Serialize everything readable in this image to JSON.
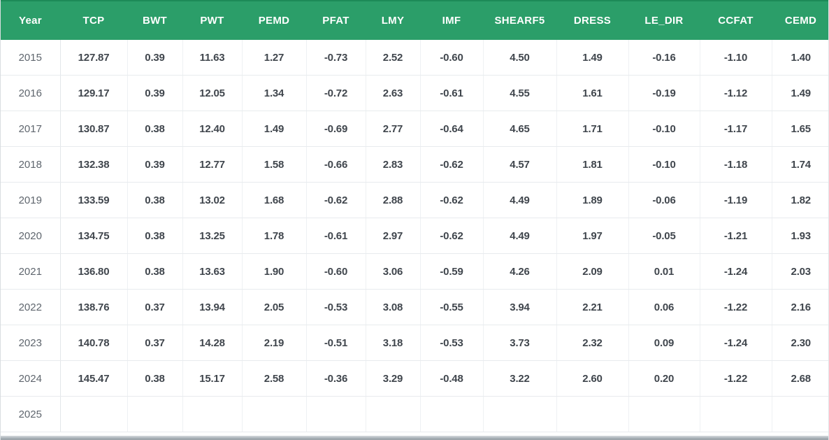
{
  "table": {
    "columns": [
      "Year",
      "TCP",
      "BWT",
      "PWT",
      "PEMD",
      "PFAT",
      "LMY",
      "IMF",
      "SHEARF5",
      "DRESS",
      "LE_DIR",
      "CCFAT",
      "CEMD"
    ],
    "rows": [
      [
        "2015",
        "127.87",
        "0.39",
        "11.63",
        "1.27",
        "-0.73",
        "2.52",
        "-0.60",
        "4.50",
        "1.49",
        "-0.16",
        "-1.10",
        "1.40"
      ],
      [
        "2016",
        "129.17",
        "0.39",
        "12.05",
        "1.34",
        "-0.72",
        "2.63",
        "-0.61",
        "4.55",
        "1.61",
        "-0.19",
        "-1.12",
        "1.49"
      ],
      [
        "2017",
        "130.87",
        "0.38",
        "12.40",
        "1.49",
        "-0.69",
        "2.77",
        "-0.64",
        "4.65",
        "1.71",
        "-0.10",
        "-1.17",
        "1.65"
      ],
      [
        "2018",
        "132.38",
        "0.39",
        "12.77",
        "1.58",
        "-0.66",
        "2.83",
        "-0.62",
        "4.57",
        "1.81",
        "-0.10",
        "-1.18",
        "1.74"
      ],
      [
        "2019",
        "133.59",
        "0.38",
        "13.02",
        "1.68",
        "-0.62",
        "2.88",
        "-0.62",
        "4.49",
        "1.89",
        "-0.06",
        "-1.19",
        "1.82"
      ],
      [
        "2020",
        "134.75",
        "0.38",
        "13.25",
        "1.78",
        "-0.61",
        "2.97",
        "-0.62",
        "4.49",
        "1.97",
        "-0.05",
        "-1.21",
        "1.93"
      ],
      [
        "2021",
        "136.80",
        "0.38",
        "13.63",
        "1.90",
        "-0.60",
        "3.06",
        "-0.59",
        "4.26",
        "2.09",
        "0.01",
        "-1.24",
        "2.03"
      ],
      [
        "2022",
        "138.76",
        "0.37",
        "13.94",
        "2.05",
        "-0.53",
        "3.08",
        "-0.55",
        "3.94",
        "2.21",
        "0.06",
        "-1.22",
        "2.16"
      ],
      [
        "2023",
        "140.78",
        "0.37",
        "14.28",
        "2.19",
        "-0.51",
        "3.18",
        "-0.53",
        "3.73",
        "2.32",
        "0.09",
        "-1.24",
        "2.30"
      ],
      [
        "2024",
        "145.47",
        "0.38",
        "15.17",
        "2.58",
        "-0.36",
        "3.29",
        "-0.48",
        "3.22",
        "2.60",
        "0.20",
        "-1.22",
        "2.68"
      ],
      [
        "2025",
        "",
        "",
        "",
        "",
        "",
        "",
        "",
        "",
        "",
        "",
        "",
        ""
      ]
    ]
  },
  "colors": {
    "header_background": "#2b9e69",
    "header_border_top": "#1d8a58",
    "header_text": "#ffffff",
    "year_text": "#5f666e",
    "value_text": "#40464d",
    "grid_line": "#e8ebee",
    "scrollbar": "#a8b0b6"
  }
}
